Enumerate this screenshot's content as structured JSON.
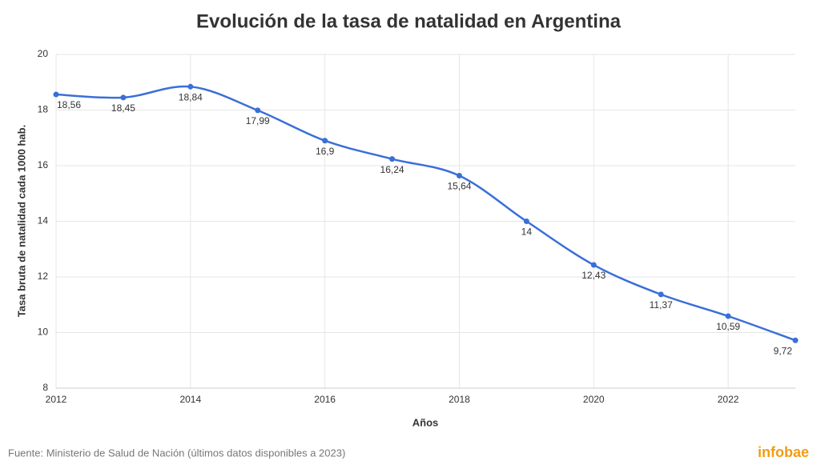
{
  "chart_data": {
    "type": "line",
    "title": "Evolución de la tasa de natalidad en Argentina",
    "x_label": "Años",
    "y_label": "Tasa bruta de natalidad cada 1000 hab.",
    "x": [
      2012,
      2013,
      2014,
      2015,
      2016,
      2017,
      2018,
      2019,
      2020,
      2021,
      2022,
      2023
    ],
    "series": [
      {
        "name": "Tasa bruta de natalidad",
        "color": "#3a6fd8",
        "values": [
          18.56,
          18.45,
          18.84,
          17.99,
          16.9,
          16.24,
          15.64,
          14,
          12.43,
          11.37,
          10.59,
          9.72
        ],
        "value_labels": [
          "18,56",
          "18,45",
          "18,84",
          "17,99",
          "16,9",
          "16,24",
          "15,64",
          "14",
          "12,43",
          "11,37",
          "10,59",
          "9,72"
        ]
      }
    ],
    "xlim": [
      2012,
      2023
    ],
    "xticks": [
      2012,
      2014,
      2016,
      2018,
      2020,
      2022
    ],
    "ylim": [
      8,
      20
    ],
    "yticks": [
      8,
      10,
      12,
      14,
      16,
      18,
      20
    ],
    "grid": true,
    "source": "Fuente: Ministerio de Salud de Nación (últimos datos disponibles a 2023)",
    "brand": "infobae"
  }
}
